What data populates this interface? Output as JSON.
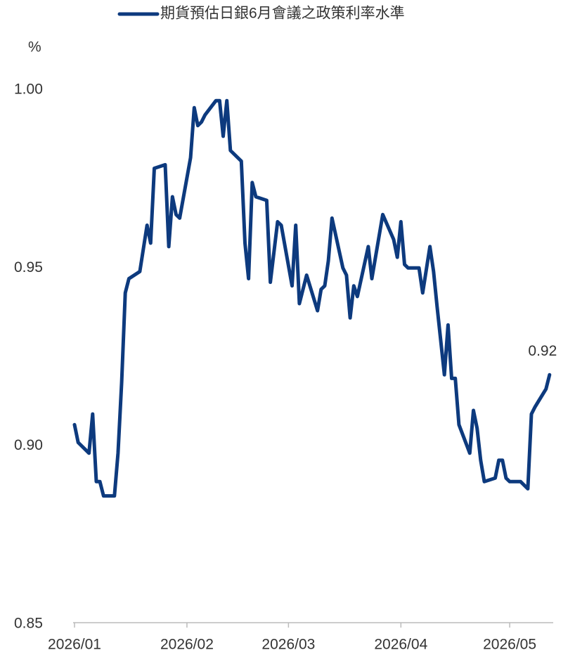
{
  "chart_data": {
    "type": "line",
    "y_label": "%",
    "annotation": "0.92",
    "x": [
      0,
      1,
      4,
      5,
      6,
      7,
      8,
      11,
      12,
      13,
      14,
      15,
      18,
      20,
      21,
      22,
      25,
      26,
      27,
      28,
      29,
      32,
      33,
      34,
      35,
      36,
      39,
      40,
      41,
      42,
      43,
      46,
      47,
      48,
      49,
      50,
      53,
      54,
      56,
      57,
      60,
      61,
      62,
      64,
      67,
      68,
      69,
      70,
      71,
      74,
      75,
      76,
      77,
      78,
      81,
      82,
      85,
      88,
      89,
      90,
      91,
      92,
      95,
      96,
      98,
      99,
      100,
      102,
      103,
      104,
      105,
      106,
      109,
      110,
      111,
      112,
      113,
      116,
      117,
      118,
      119,
      120,
      123,
      125,
      126,
      127,
      130,
      131
    ],
    "series": [
      {
        "name": "期貨預估日銀6月會議之政策利率水準",
        "color": "#0d3a7e",
        "values": [
          0.906,
          0.901,
          0.898,
          0.909,
          0.89,
          0.89,
          0.886,
          0.886,
          0.898,
          0.918,
          0.943,
          0.947,
          0.949,
          0.962,
          0.957,
          0.978,
          0.979,
          0.956,
          0.97,
          0.965,
          0.964,
          0.981,
          0.995,
          0.99,
          0.991,
          0.993,
          0.997,
          0.997,
          0.987,
          0.997,
          0.983,
          0.98,
          0.957,
          0.947,
          0.974,
          0.97,
          0.969,
          0.946,
          0.963,
          0.962,
          0.945,
          0.962,
          0.94,
          0.948,
          0.938,
          0.944,
          0.945,
          0.952,
          0.964,
          0.95,
          0.948,
          0.936,
          0.945,
          0.942,
          0.956,
          0.947,
          0.965,
          0.958,
          0.953,
          0.963,
          0.951,
          0.95,
          0.95,
          0.943,
          0.956,
          0.949,
          0.939,
          0.92,
          0.934,
          0.919,
          0.919,
          0.906,
          0.898,
          0.91,
          0.905,
          0.896,
          0.89,
          0.891,
          0.896,
          0.896,
          0.891,
          0.89,
          0.89,
          0.888,
          0.909,
          0.911,
          0.916,
          0.92
        ]
      }
    ],
    "xlim": [
      0,
      132
    ],
    "xticks": [
      {
        "value": 0,
        "label": "2026/01"
      },
      {
        "value": 31,
        "label": "2026/02"
      },
      {
        "value": 59,
        "label": "2026/03"
      },
      {
        "value": 90,
        "label": "2026/04"
      },
      {
        "value": 120,
        "label": "2026/05"
      }
    ],
    "ylim": [
      0.85,
      1.0
    ],
    "yticks": [
      0.85,
      {
        "value": 0.9,
        "label": "0.90"
      },
      0.95,
      {
        "value": 1.0,
        "label": "1.00"
      }
    ],
    "grid": false
  }
}
